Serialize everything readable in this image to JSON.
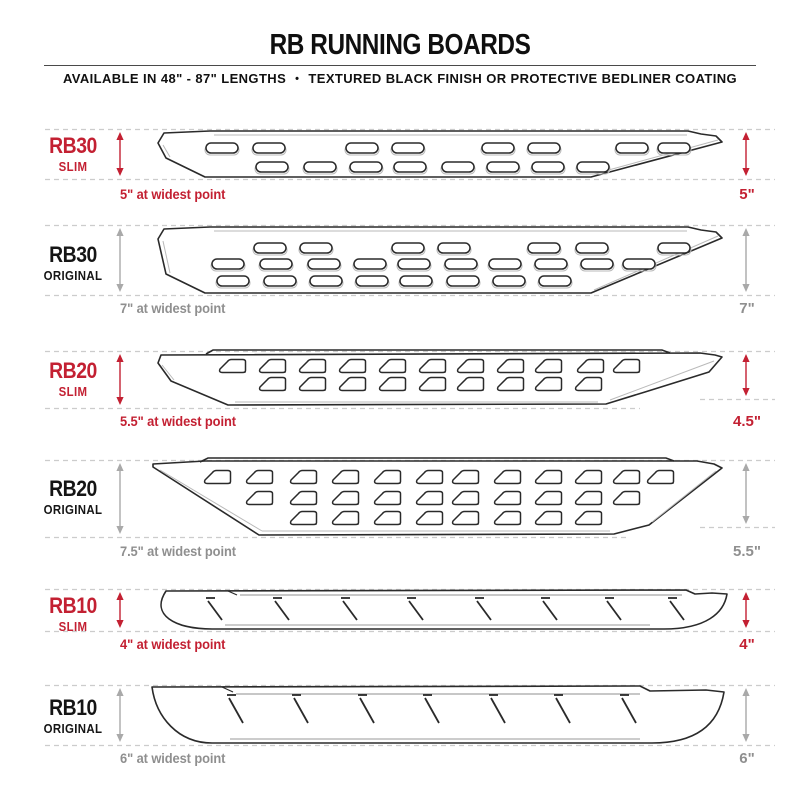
{
  "header": {
    "title": "RB RUNNING BOARDS",
    "subtitle_left": "AVAILABLE IN 48\" - 87\" LENGTHS",
    "subtitle_sep": "•",
    "subtitle_right": "TEXTURED BLACK FINISH OR PROTECTIVE BEDLINER COATING"
  },
  "colors": {
    "accent_red": "#C32032",
    "muted_gray": "#8F8F8F",
    "arrow_gray": "#A9A9A9",
    "outline": "#2A2A2A",
    "detail_gray": "#B9B9B9",
    "dash_gray": "#CCCCCC"
  },
  "rows": [
    {
      "id": "rb30-slim",
      "model": "RB30",
      "variant": "SLIM",
      "accent": "red",
      "width_note": "5\" at widest point",
      "side_width": "5\""
    },
    {
      "id": "rb30-original",
      "model": "RB30",
      "variant": "ORIGINAL",
      "accent": "gray",
      "width_note": "7\" at widest point",
      "side_width": "7\""
    },
    {
      "id": "rb20-slim",
      "model": "RB20",
      "variant": "SLIM",
      "accent": "red",
      "width_note": "5.5\" at widest point",
      "side_width": "4.5\""
    },
    {
      "id": "rb20-original",
      "model": "RB20",
      "variant": "ORIGINAL",
      "accent": "gray",
      "width_note": "7.5\" at widest point",
      "side_width": "5.5\""
    },
    {
      "id": "rb10-slim",
      "model": "RB10",
      "variant": "SLIM",
      "accent": "red",
      "width_note": "4\" at widest point",
      "side_width": "4\""
    },
    {
      "id": "rb10-original",
      "model": "RB10",
      "variant": "ORIGINAL",
      "accent": "gray",
      "width_note": "6\" at widest point",
      "side_width": "6\""
    }
  ]
}
